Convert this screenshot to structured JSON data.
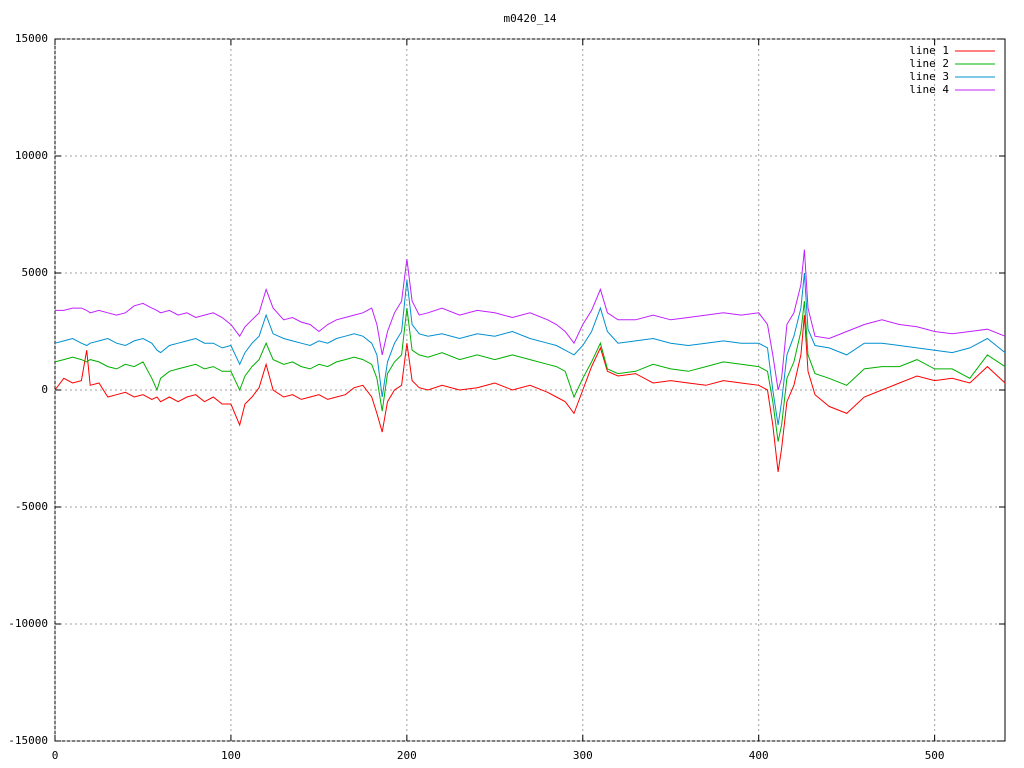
{
  "chart_data": {
    "type": "line",
    "title": "m0420_14",
    "x": [
      0,
      5,
      10,
      15,
      18,
      20,
      25,
      30,
      35,
      40,
      45,
      50,
      55,
      58,
      60,
      65,
      70,
      75,
      80,
      85,
      90,
      95,
      100,
      105,
      108,
      112,
      116,
      120,
      124,
      130,
      135,
      140,
      145,
      150,
      155,
      160,
      165,
      170,
      175,
      180,
      183,
      186,
      189,
      193,
      197,
      200,
      203,
      207,
      212,
      220,
      230,
      240,
      250,
      260,
      270,
      280,
      285,
      290,
      295,
      300,
      305,
      310,
      314,
      320,
      330,
      340,
      350,
      360,
      370,
      380,
      390,
      400,
      405,
      408,
      411,
      413,
      416,
      420,
      424,
      426,
      428,
      432,
      440,
      450,
      460,
      470,
      480,
      490,
      500,
      510,
      520,
      530,
      540
    ],
    "series": [
      {
        "name": "line 1",
        "color": "#ff0000",
        "values": [
          0,
          500,
          300,
          400,
          1700,
          200,
          300,
          -300,
          -200,
          -100,
          -300,
          -200,
          -400,
          -300,
          -500,
          -300,
          -500,
          -300,
          -200,
          -500,
          -300,
          -600,
          -600,
          -1500,
          -600,
          -300,
          100,
          1100,
          0,
          -300,
          -200,
          -400,
          -300,
          -200,
          -400,
          -300,
          -200,
          100,
          200,
          -300,
          -1000,
          -1800,
          -500,
          0,
          200,
          2000,
          400,
          100,
          0,
          200,
          0,
          100,
          300,
          0,
          200,
          -100,
          -300,
          -500,
          -1000,
          0,
          1000,
          1800,
          800,
          600,
          700,
          300,
          400,
          300,
          200,
          400,
          300,
          200,
          0,
          -1500,
          -3500,
          -2500,
          -500,
          200,
          1500,
          3200,
          800,
          -200,
          -700,
          -1000,
          -300,
          0,
          300,
          600,
          400,
          500,
          300,
          1000,
          300
        ]
      },
      {
        "name": "line 2",
        "color": "#00b000",
        "values": [
          1200,
          1300,
          1400,
          1300,
          1200,
          1300,
          1200,
          1000,
          900,
          1100,
          1000,
          1200,
          500,
          0,
          500,
          800,
          900,
          1000,
          1100,
          900,
          1000,
          800,
          800,
          0,
          600,
          1000,
          1300,
          2000,
          1300,
          1100,
          1200,
          1000,
          900,
          1100,
          1000,
          1200,
          1300,
          1400,
          1300,
          1100,
          500,
          -900,
          700,
          1200,
          1500,
          3500,
          1700,
          1500,
          1400,
          1600,
          1300,
          1500,
          1300,
          1500,
          1300,
          1100,
          1000,
          800,
          -300,
          500,
          1200,
          2000,
          900,
          700,
          800,
          1100,
          900,
          800,
          1000,
          1200,
          1100,
          1000,
          800,
          -500,
          -2200,
          -1500,
          500,
          1200,
          2500,
          3800,
          1500,
          700,
          500,
          200,
          900,
          1000,
          1000,
          1300,
          900,
          900,
          500,
          1500,
          1000
        ]
      },
      {
        "name": "line 3",
        "color": "#0090d0",
        "values": [
          2000,
          2100,
          2200,
          2000,
          1900,
          2000,
          2100,
          2200,
          2000,
          1900,
          2100,
          2200,
          2000,
          1700,
          1600,
          1900,
          2000,
          2100,
          2200,
          2000,
          2000,
          1800,
          1900,
          1100,
          1600,
          2000,
          2300,
          3200,
          2400,
          2200,
          2100,
          2000,
          1900,
          2100,
          2000,
          2200,
          2300,
          2400,
          2300,
          2000,
          1500,
          -300,
          1200,
          2000,
          2500,
          4700,
          2800,
          2400,
          2300,
          2400,
          2200,
          2400,
          2300,
          2500,
          2200,
          2000,
          1900,
          1700,
          1500,
          1900,
          2500,
          3500,
          2500,
          2000,
          2100,
          2200,
          2000,
          1900,
          2000,
          2100,
          2000,
          2000,
          1800,
          0,
          -1500,
          -500,
          1500,
          2300,
          3500,
          5000,
          2600,
          1900,
          1800,
          1500,
          2000,
          2000,
          1900,
          1800,
          1700,
          1600,
          1800,
          2200,
          1600
        ]
      },
      {
        "name": "line 4",
        "color": "#c020ff",
        "values": [
          3400,
          3400,
          3500,
          3500,
          3400,
          3300,
          3400,
          3300,
          3200,
          3300,
          3600,
          3700,
          3500,
          3400,
          3300,
          3400,
          3200,
          3300,
          3100,
          3200,
          3300,
          3100,
          2800,
          2300,
          2700,
          3000,
          3300,
          4300,
          3500,
          3000,
          3100,
          2900,
          2800,
          2500,
          2800,
          3000,
          3100,
          3200,
          3300,
          3500,
          2800,
          1500,
          2500,
          3300,
          3800,
          5600,
          3800,
          3200,
          3300,
          3500,
          3200,
          3400,
          3300,
          3100,
          3300,
          3000,
          2800,
          2500,
          2000,
          2800,
          3400,
          4300,
          3300,
          3000,
          3000,
          3200,
          3000,
          3100,
          3200,
          3300,
          3200,
          3300,
          2800,
          1500,
          0,
          500,
          2800,
          3300,
          4500,
          6000,
          3500,
          2300,
          2200,
          2500,
          2800,
          3000,
          2800,
          2700,
          2500,
          2400,
          2500,
          2600,
          2300
        ]
      }
    ],
    "xlim": [
      0,
      540
    ],
    "xticks": [
      0,
      100,
      200,
      300,
      400,
      500
    ],
    "ylim": [
      -15000,
      15000
    ],
    "yticks": [
      -15000,
      -10000,
      -5000,
      0,
      5000,
      10000,
      15000
    ],
    "grid": true,
    "legend": "top-right"
  }
}
